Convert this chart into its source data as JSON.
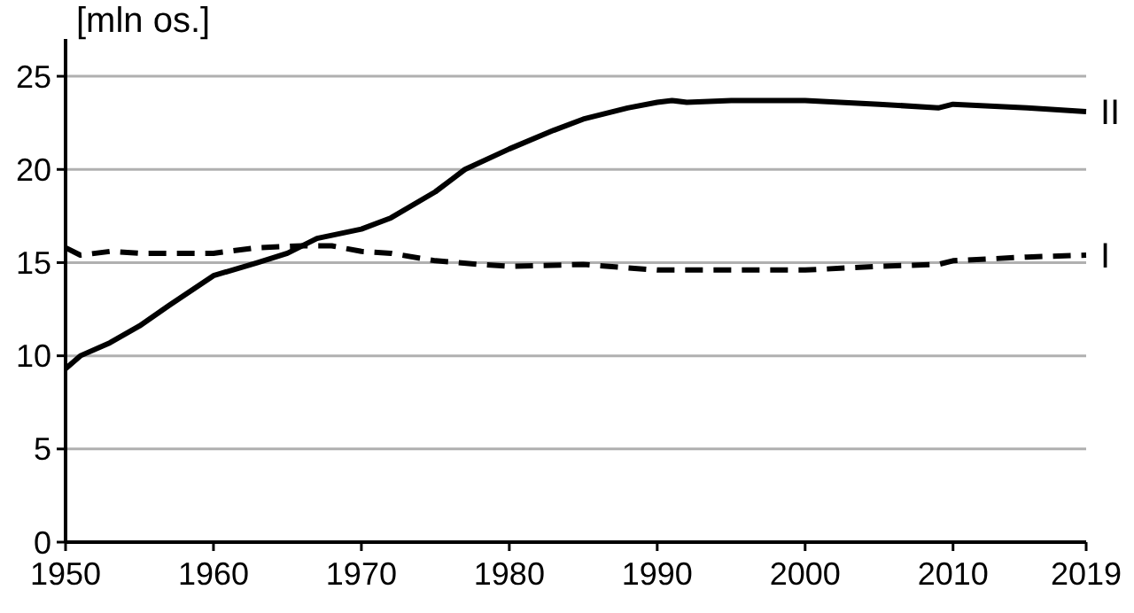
{
  "chart_data": {
    "type": "line",
    "ylabel": "[mln os.]",
    "xlim": [
      1950,
      2019
    ],
    "xticks": [
      1950,
      1960,
      1970,
      1980,
      1990,
      2000,
      2010,
      2019
    ],
    "ylim": [
      0,
      27
    ],
    "yticks": [
      0,
      5,
      10,
      15,
      20,
      25
    ],
    "grid": "y",
    "series": [
      {
        "name": "II",
        "color": "#000000",
        "line_style": "solid",
        "x": [
          1950,
          1951,
          1953,
          1955,
          1957,
          1960,
          1963,
          1965,
          1967,
          1970,
          1972,
          1975,
          1977,
          1980,
          1983,
          1985,
          1988,
          1990,
          1991,
          1992,
          1995,
          2000,
          2005,
          2009,
          2010,
          2015,
          2019
        ],
        "values": [
          9.3,
          10.0,
          10.7,
          11.6,
          12.7,
          14.3,
          15.0,
          15.5,
          16.3,
          16.8,
          17.4,
          18.8,
          20.0,
          21.1,
          22.1,
          22.7,
          23.3,
          23.6,
          23.7,
          23.6,
          23.7,
          23.7,
          23.5,
          23.3,
          23.5,
          23.3,
          23.1
        ]
      },
      {
        "name": "I",
        "color": "#000000",
        "line_style": "dashed",
        "x": [
          1950,
          1951,
          1953,
          1955,
          1960,
          1963,
          1966,
          1968,
          1970,
          1972,
          1975,
          1978,
          1980,
          1985,
          1990,
          1995,
          2000,
          2005,
          2009,
          2010,
          2015,
          2019
        ],
        "values": [
          15.8,
          15.4,
          15.6,
          15.5,
          15.5,
          15.8,
          15.9,
          15.9,
          15.6,
          15.5,
          15.1,
          14.9,
          14.8,
          14.9,
          14.6,
          14.6,
          14.6,
          14.8,
          14.9,
          15.1,
          15.3,
          15.4
        ]
      }
    ]
  }
}
